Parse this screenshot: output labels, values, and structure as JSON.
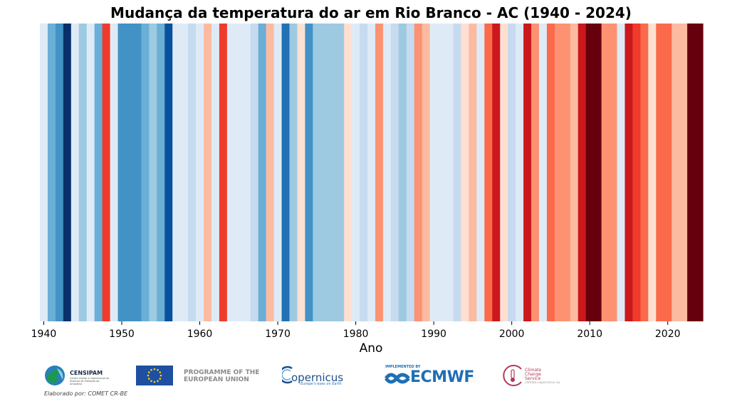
{
  "colors": {
    "palette_cold_to_warm": [
      "#08306b",
      "#08519c",
      "#2171b5",
      "#4292c6",
      "#6baed6",
      "#9ecae1",
      "#c6dbef",
      "#deebf7",
      "#fee0d2",
      "#fcbba1",
      "#fc9272",
      "#fb6a4a",
      "#ef3b2c",
      "#cb181d",
      "#67000d"
    ]
  },
  "chart_data": {
    "type": "heatmap",
    "title": "Mudança da temperatura do ar em Rio Branco - AC (1940 - 2024)",
    "xlabel": "Ano",
    "ylabel": "",
    "x_ticks": [
      1940,
      1950,
      1960,
      1970,
      1980,
      1990,
      2000,
      2010,
      2020
    ],
    "xlim": [
      1939.5,
      2024.5
    ],
    "legend": "none",
    "grid": false,
    "encoding": "color of each yearly stripe shows relative air temperature (blue colder, red warmer)",
    "years": [
      1940,
      1941,
      1942,
      1943,
      1944,
      1945,
      1946,
      1947,
      1948,
      1949,
      1950,
      1951,
      1952,
      1953,
      1954,
      1955,
      1956,
      1957,
      1958,
      1959,
      1960,
      1961,
      1962,
      1963,
      1964,
      1965,
      1966,
      1967,
      1968,
      1969,
      1970,
      1971,
      1972,
      1973,
      1974,
      1975,
      1976,
      1977,
      1978,
      1979,
      1980,
      1981,
      1982,
      1983,
      1984,
      1985,
      1986,
      1987,
      1988,
      1989,
      1990,
      1991,
      1992,
      1993,
      1994,
      1995,
      1996,
      1997,
      1998,
      1999,
      2000,
      2001,
      2002,
      2003,
      2004,
      2005,
      2006,
      2007,
      2008,
      2009,
      2010,
      2011,
      2012,
      2013,
      2014,
      2015,
      2016,
      2017,
      2018,
      2019,
      2020,
      2021,
      2022,
      2023,
      2024
    ],
    "color_index": [
      7,
      4,
      3,
      0,
      7,
      5,
      7,
      4,
      12,
      7,
      3,
      3,
      3,
      4,
      5,
      4,
      1,
      7,
      7,
      6,
      7,
      9,
      7,
      12,
      7,
      7,
      7,
      6,
      4,
      9,
      7,
      2,
      5,
      8,
      3,
      5,
      5,
      5,
      5,
      8,
      7,
      6,
      7,
      10,
      7,
      6,
      5,
      6,
      10,
      9,
      7,
      7,
      7,
      6,
      8,
      9,
      7,
      11,
      13,
      8,
      6,
      7,
      13,
      10,
      7,
      11,
      10,
      10,
      9,
      13,
      14,
      14,
      10,
      10,
      7,
      13,
      12,
      11,
      8,
      11,
      11,
      9,
      9,
      14,
      14
    ]
  },
  "logos": {
    "censipam_name": "CENSIPAM",
    "censipam_subtitle": "Centro Gestor e Operacional do Sistema de Proteção da Amazônia",
    "eu_text": "PROGRAMME OF THE EUROPEAN UNION",
    "copernicus_word": "opernicus",
    "copernicus_tagline": "Europe's eyes on Earth",
    "ecmwf_implemented": "IMPLEMENTED BY",
    "ecmwf_word": "ECMWF",
    "c3s_name": "Climate Change Service",
    "c3s_url": "climate.copernicus.eu"
  },
  "credit": "Elaborado por: COMET CR-BE"
}
